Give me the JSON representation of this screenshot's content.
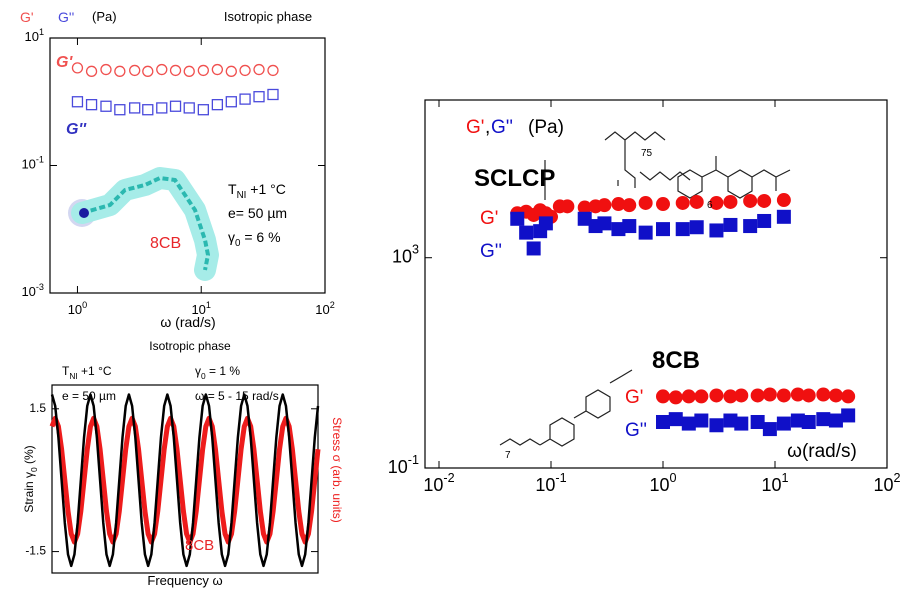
{
  "chart_data": [
    {
      "type": "scatter",
      "title": "Isotropic phase",
      "y_label": "(Pa)",
      "x_label": "ω (rad/s)",
      "log_x": true,
      "log_y": true,
      "filled": false,
      "xlim": [
        0.6,
        100
      ],
      "ylim": [
        0.001,
        10
      ],
      "xticks": [
        {
          "value": 1,
          "label": "10^0"
        },
        {
          "value": 10,
          "label": "10^1"
        },
        {
          "value": 100,
          "label": "10^2"
        }
      ],
      "yticks": [
        {
          "value": 0.001,
          "label": "10^-3"
        },
        {
          "value": 0.1,
          "label": "10^-1"
        },
        {
          "value": 10,
          "label": "10^1"
        }
      ],
      "series": [
        {
          "name": "G'",
          "color": "#f0504f",
          "marker": "circle",
          "x": [
            1,
            1.3,
            1.7,
            2.2,
            2.9,
            3.7,
            4.8,
            6.2,
            8,
            10.4,
            13.5,
            17.5,
            22.6,
            29.3,
            38
          ],
          "values": [
            3.4,
            3.0,
            3.2,
            3.0,
            3.1,
            3.0,
            3.2,
            3.1,
            3.0,
            3.1,
            3.2,
            3.0,
            3.1,
            3.2,
            3.1
          ]
        },
        {
          "name": "G''",
          "color": "#4a4adc",
          "marker": "square",
          "x": [
            1,
            1.3,
            1.7,
            2.2,
            2.9,
            3.7,
            4.8,
            6.2,
            8,
            10.4,
            13.5,
            17.5,
            22.6,
            29.3,
            38
          ],
          "values": [
            1.0,
            0.9,
            0.85,
            0.75,
            0.8,
            0.75,
            0.8,
            0.85,
            0.8,
            0.75,
            0.9,
            1.0,
            1.1,
            1.2,
            1.3
          ]
        }
      ],
      "annotations": [
        {
          "text": "G'",
          "color": "#f0504f"
        },
        {
          "text": "G''",
          "color": "#3030c0"
        },
        {
          "text": "T_NI +1 °C",
          "color": "#000000"
        },
        {
          "text": "e= 50 µm",
          "color": "#000000"
        },
        {
          "text": "γ_0 = 6 %",
          "color": "#000000"
        },
        {
          "text": "8CB",
          "color": "#e8262a"
        }
      ]
    },
    {
      "type": "line",
      "title": "Isotropic phase",
      "x_label": "Frequency ω",
      "y_label": "Strain γ_0 (%)",
      "y2_label": "Stress σ (arb. units)",
      "xlim": [
        0,
        83
      ],
      "ylim": [
        -1.95,
        2.0
      ],
      "yticks": [
        1.5,
        -1.5
      ],
      "x": [
        0,
        1,
        2,
        3,
        4,
        5,
        6,
        7,
        8,
        9,
        10,
        11,
        12,
        13,
        14,
        15,
        16,
        17,
        18,
        19,
        20,
        21,
        22,
        23,
        24,
        25,
        26,
        27,
        28,
        29,
        30,
        31,
        32,
        33,
        34,
        35,
        36,
        37,
        38,
        39,
        40,
        41,
        42,
        43,
        44,
        45,
        46,
        47,
        48,
        49,
        50,
        51,
        52,
        53,
        54,
        55,
        56,
        57,
        58,
        59,
        60,
        61,
        62,
        63,
        64,
        65,
        66,
        67,
        68,
        69,
        70,
        71,
        72,
        73,
        74,
        75,
        76,
        77,
        78,
        79,
        80,
        81,
        82,
        83
      ],
      "series": [
        {
          "name": "Stress",
          "color": "#ee1c1c",
          "width": 5,
          "values": [
            1.13,
            1.3,
            1.13,
            0.65,
            0,
            -0.65,
            -1.13,
            -1.3,
            -1.13,
            -0.65,
            0,
            0.65,
            1.13,
            1.3,
            1.13,
            0.65,
            0,
            -0.65,
            -1.13,
            -1.3,
            -1.13,
            -0.65,
            0,
            0.65,
            1.13,
            1.3,
            1.13,
            0.65,
            0,
            -0.65,
            -1.13,
            -1.3,
            -1.13,
            -0.65,
            0,
            0.65,
            1.13,
            1.3,
            1.13,
            0.65,
            0,
            -0.65,
            -1.13,
            -1.3,
            -1.13,
            -0.65,
            0,
            0.65,
            1.13,
            1.3,
            1.13,
            0.65,
            0,
            -0.65,
            -1.13,
            -1.3,
            -1.13,
            -0.65,
            0,
            0.65,
            1.13,
            1.3,
            1.13,
            0.65,
            0,
            -0.65,
            -1.13,
            -1.3,
            -1.13,
            -0.65,
            0,
            0.65,
            1.13,
            1.3,
            1.13,
            0.65,
            0,
            -0.65,
            -1.13,
            -1.3,
            -1.13,
            -0.65,
            0,
            0.65
          ]
        },
        {
          "name": "Strain",
          "color": "#000000",
          "width": 2.5,
          "values": [
            1.8,
            1.56,
            0.9,
            0,
            -0.9,
            -1.56,
            -1.8,
            -1.56,
            -0.9,
            0,
            0.9,
            1.56,
            1.8,
            1.56,
            0.9,
            0,
            -0.9,
            -1.56,
            -1.8,
            -1.56,
            -0.9,
            0,
            0.9,
            1.56,
            1.8,
            1.56,
            0.9,
            0,
            -0.9,
            -1.56,
            -1.8,
            -1.56,
            -0.9,
            0,
            0.9,
            1.56,
            1.8,
            1.56,
            0.9,
            0,
            -0.9,
            -1.56,
            -1.8,
            -1.56,
            -0.9,
            0,
            0.9,
            1.56,
            1.8,
            1.56,
            0.9,
            0,
            -0.9,
            -1.56,
            -1.8,
            -1.56,
            -0.9,
            0,
            0.9,
            1.56,
            1.8,
            1.56,
            0.9,
            0,
            -0.9,
            -1.56,
            -1.8,
            -1.56,
            -0.9,
            0,
            0.9,
            1.56,
            1.8,
            1.56,
            0.9,
            0,
            -0.9,
            -1.56,
            -1.8,
            -1.56,
            -0.9,
            0,
            0.9,
            1.56
          ]
        }
      ],
      "annotations": [
        {
          "text": "T_NI +1 °C",
          "color": "#000000"
        },
        {
          "text": "γ_0 = 1 %",
          "color": "#000000"
        },
        {
          "text": "e = 50 µm",
          "color": "#000000"
        },
        {
          "text": "ω = 5 - 15 rad/s",
          "color": "#000000"
        },
        {
          "text": "8CB",
          "color": "#e8262a"
        }
      ]
    },
    {
      "type": "scatter",
      "x_label": "ω(rad/s)",
      "log_x": true,
      "log_y": true,
      "filled": true,
      "xlim": [
        0.0075,
        100
      ],
      "ylim": [
        0.1,
        1000000
      ],
      "xticks": [
        {
          "value": 0.01,
          "label": "10^-2"
        },
        {
          "value": 0.1,
          "label": "10^-1"
        },
        {
          "value": 1,
          "label": "10^0"
        },
        {
          "value": 10,
          "label": "10^1"
        },
        {
          "value": 100,
          "label": "10^2"
        }
      ],
      "yticks": [
        {
          "value": 0.1,
          "label": "10^-1"
        },
        {
          "value": 1000,
          "label": "10^3"
        }
      ],
      "series": [
        {
          "name": "G'",
          "color": "#f01010",
          "marker": "circle",
          "x": [
            0.05,
            0.06,
            0.07,
            0.08,
            0.09,
            0.1,
            0.12,
            0.14,
            0.2,
            0.25,
            0.3,
            0.4,
            0.5,
            0.7,
            1,
            1.5,
            2,
            3,
            4,
            6,
            8,
            12
          ],
          "values": [
            7000,
            7500,
            6500,
            8000,
            7000,
            6000,
            9500,
            9500,
            9000,
            9500,
            10000,
            10500,
            10000,
            11000,
            10500,
            11000,
            11500,
            11000,
            11500,
            12000,
            12000,
            12500
          ]
        },
        {
          "name": "G''",
          "color": "#1010c8",
          "marker": "square",
          "x": [
            0.05,
            0.06,
            0.07,
            0.08,
            0.09,
            0.2,
            0.25,
            0.3,
            0.4,
            0.5,
            0.7,
            1,
            1.5,
            2,
            3,
            4,
            6,
            8,
            12
          ],
          "values": [
            5500,
            3000,
            1500,
            3200,
            4500,
            5500,
            4000,
            4500,
            3500,
            4000,
            3000,
            3500,
            3500,
            3800,
            3300,
            4200,
            4000,
            5000,
            6000
          ]
        },
        {
          "name": "G'",
          "color": "#f01010",
          "marker": "circle",
          "x": [
            1,
            1.3,
            1.7,
            2.2,
            3,
            4,
            5,
            7,
            9,
            12,
            16,
            20,
            27,
            35,
            45
          ],
          "values": [
            2.3,
            2.2,
            2.3,
            2.3,
            2.4,
            2.3,
            2.4,
            2.4,
            2.5,
            2.4,
            2.5,
            2.4,
            2.5,
            2.4,
            2.3
          ]
        },
        {
          "name": "G''",
          "color": "#1010c8",
          "marker": "square",
          "x": [
            1,
            1.3,
            1.7,
            2.2,
            3,
            4,
            5,
            7,
            9,
            12,
            16,
            20,
            27,
            35,
            45
          ],
          "values": [
            0.75,
            0.85,
            0.7,
            0.8,
            0.65,
            0.8,
            0.7,
            0.75,
            0.55,
            0.7,
            0.8,
            0.75,
            0.85,
            0.8,
            1.0
          ]
        }
      ],
      "annotations": [
        {
          "text": "G'",
          "color": "#f01010"
        },
        {
          "text": ",",
          "color": "#000000"
        },
        {
          "text": "G''",
          "color": "#1010c8"
        },
        {
          "text": "(Pa)",
          "color": "#000000"
        },
        {
          "text": "SCLCP",
          "color": "#000000"
        },
        {
          "text": "8CB",
          "color": "#000000"
        },
        {
          "text": "75",
          "color": "#000000"
        },
        {
          "text": "6",
          "color": "#000000"
        },
        {
          "text": "7",
          "color": "#000000"
        }
      ]
    }
  ]
}
